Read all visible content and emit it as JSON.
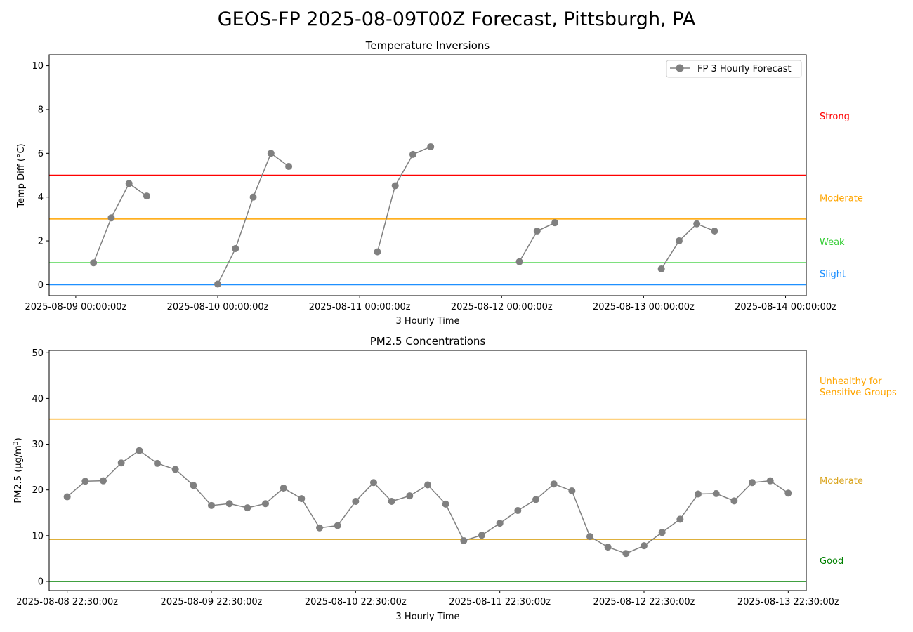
{
  "figure": {
    "title": "GEOS-FP 2025-08-09T00Z Forecast, Pittsburgh, PA"
  },
  "chart_data": [
    {
      "type": "line",
      "title": "Temperature Inversions",
      "xlabel": "3 Hourly Time",
      "ylabel": "Temp Diff (°C)",
      "ylim": [
        -0.5,
        10.5
      ],
      "yticks": [
        0,
        2,
        4,
        6,
        8,
        10
      ],
      "xlim": [
        "2025-08-08 19:30",
        "2025-08-14 03:30"
      ],
      "xticks": [
        "2025-08-09 00:00",
        "2025-08-10 00:00",
        "2025-08-11 00:00",
        "2025-08-12 00:00",
        "2025-08-13 00:00",
        "2025-08-14 00:00"
      ],
      "xtick_labels": [
        "2025-08-09 00:00:00z",
        "2025-08-10 00:00:00z",
        "2025-08-11 00:00:00z",
        "2025-08-12 00:00:00z",
        "2025-08-13 00:00:00z",
        "2025-08-14 00:00:00z"
      ],
      "grid": false,
      "legend": {
        "placement": "top-right",
        "entries": [
          "FP 3 Hourly Forecast"
        ]
      },
      "series": [
        {
          "name": "FP 3 Hourly Forecast",
          "color": "#808080",
          "segments": [
            {
              "x": [
                "2025-08-09 03:00",
                "2025-08-09 06:00",
                "2025-08-09 09:00",
                "2025-08-09 12:00"
              ],
              "y": [
                1.0,
                3.05,
                4.62,
                4.05
              ]
            },
            {
              "x": [
                "2025-08-10 00:00",
                "2025-08-10 03:00",
                "2025-08-10 06:00",
                "2025-08-10 09:00",
                "2025-08-10 12:00"
              ],
              "y": [
                0.03,
                1.65,
                4.0,
                6.0,
                5.4
              ]
            },
            {
              "x": [
                "2025-08-11 03:00",
                "2025-08-11 06:00",
                "2025-08-11 09:00",
                "2025-08-11 12:00"
              ],
              "y": [
                1.5,
                4.52,
                5.95,
                6.3
              ]
            },
            {
              "x": [
                "2025-08-12 03:00",
                "2025-08-12 06:00",
                "2025-08-12 09:00"
              ],
              "y": [
                1.05,
                2.45,
                2.83
              ]
            },
            {
              "x": [
                "2025-08-13 03:00",
                "2025-08-13 06:00",
                "2025-08-13 09:00",
                "2025-08-13 12:00"
              ],
              "y": [
                0.72,
                2.0,
                2.78,
                2.45
              ]
            }
          ]
        }
      ],
      "thresholds": [
        {
          "value": 0,
          "color": "#1e90ff"
        },
        {
          "value": 1,
          "color": "#32cd32"
        },
        {
          "value": 3,
          "color": "#ffa500"
        },
        {
          "value": 5,
          "color": "#ff0000"
        }
      ],
      "category_labels": [
        {
          "text": "Strong",
          "y": 7.7,
          "color": "#ff0000"
        },
        {
          "text": "Moderate",
          "y": 3.95,
          "color": "#ffa500"
        },
        {
          "text": "Weak",
          "y": 1.95,
          "color": "#32cd32"
        },
        {
          "text": "Slight",
          "y": 0.5,
          "color": "#1e90ff"
        }
      ]
    },
    {
      "type": "line",
      "title": "PM2.5 Concentrations",
      "xlabel": "3 Hourly Time",
      "ylabel": "PM2.5 (µg/m³)",
      "ylabel_base": "PM2.5 (µg/m",
      "ylabel_sup": "3",
      "ylabel_end": ")",
      "ylim": [
        -2,
        50.5
      ],
      "yticks": [
        0,
        10,
        20,
        30,
        40,
        50
      ],
      "xlim": [
        "2025-08-08 19:30",
        "2025-08-14 01:30"
      ],
      "xticks": [
        "2025-08-08 22:30",
        "2025-08-09 22:30",
        "2025-08-10 22:30",
        "2025-08-11 22:30",
        "2025-08-12 22:30",
        "2025-08-13 22:30"
      ],
      "xtick_labels": [
        "2025-08-08 22:30:00z",
        "2025-08-09 22:30:00z",
        "2025-08-10 22:30:00z",
        "2025-08-11 22:30:00z",
        "2025-08-12 22:30:00z",
        "2025-08-13 22:30:00z"
      ],
      "grid": false,
      "series": [
        {
          "color": "#808080",
          "x_start": "2025-08-08 22:30",
          "x_step_hours": 3,
          "y": [
            18.5,
            21.9,
            22.0,
            25.9,
            28.6,
            25.8,
            24.5,
            21.0,
            16.6,
            17.0,
            16.1,
            17.0,
            20.4,
            18.1,
            11.7,
            12.2,
            17.5,
            21.6,
            17.5,
            18.7,
            21.1,
            16.9,
            8.9,
            10.1,
            12.7,
            15.5,
            17.9,
            21.3,
            19.8,
            9.8,
            7.5,
            6.1,
            7.8,
            10.7,
            13.6,
            19.1,
            19.2,
            17.6,
            21.6,
            22.0,
            19.3
          ]
        }
      ],
      "thresholds": [
        {
          "value": 0,
          "color": "#008000"
        },
        {
          "value": 9.2,
          "color": "#daa520"
        },
        {
          "value": 35.5,
          "color": "#ffa500"
        }
      ],
      "category_labels": [
        {
          "text": "Unhealthy for\nSensitive Groups",
          "lines": [
            "Unhealthy for",
            "Sensitive Groups"
          ],
          "y": 42.6,
          "color": "#ffa500"
        },
        {
          "text": "Moderate",
          "y": 22.0,
          "color": "#daa520"
        },
        {
          "text": "Good",
          "y": 4.5,
          "color": "#008000"
        }
      ]
    }
  ]
}
